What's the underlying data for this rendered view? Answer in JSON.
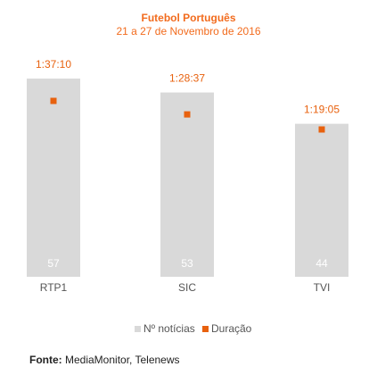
{
  "chart_data": {
    "type": "bar",
    "title": "Futebol Português",
    "subtitle": "21 a 27 de Novembro de 2016",
    "categories": [
      "RTP1",
      "SIC",
      "TVI"
    ],
    "series": [
      {
        "name": "Nº notícias",
        "values": [
          57,
          53,
          44
        ],
        "color": "#D9D9D9",
        "label_color": "#FFFFFF"
      },
      {
        "name": "Duração",
        "values": [
          "1:37:10",
          "1:28:37",
          "1:19:05"
        ],
        "seconds": [
          5830,
          5317,
          4745
        ],
        "color": "#E8610E"
      }
    ],
    "legend_position": "bottom",
    "grid": false
  },
  "footer": {
    "label": "Fonte:",
    "text": "MediaMonitor, Telenews"
  }
}
